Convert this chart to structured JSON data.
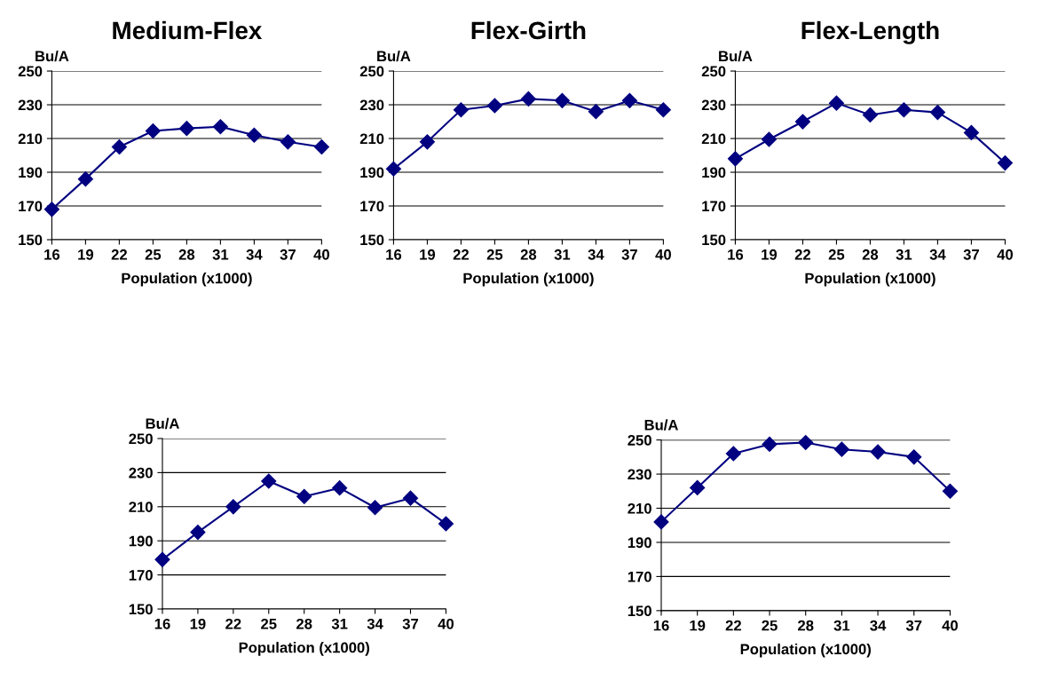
{
  "chart_data": [
    {
      "type": "line",
      "title": "Medium-Flex",
      "xlabel": "Population (x1000)",
      "ylabel": "Bu/A",
      "x": [
        16,
        19,
        22,
        25,
        28,
        31,
        34,
        37,
        40
      ],
      "series": [
        {
          "color": "#000080",
          "values": [
            168,
            186,
            205,
            214.5,
            216,
            217,
            212,
            208,
            205
          ]
        }
      ],
      "xlim": [
        16,
        40
      ],
      "xticks": [
        16,
        19,
        22,
        25,
        28,
        31,
        34,
        37,
        40
      ],
      "ylim": [
        150,
        250
      ],
      "yticks": [
        150,
        170,
        190,
        210,
        230,
        250
      ],
      "grid": "y",
      "marker": "diamond",
      "line_style": "solid"
    },
    {
      "type": "line",
      "title": "Flex-Girth",
      "xlabel": "Population (x1000)",
      "ylabel": "Bu/A",
      "x": [
        16,
        19,
        22,
        25,
        28,
        31,
        34,
        37,
        40
      ],
      "series": [
        {
          "color": "#000080",
          "values": [
            192,
            208,
            227,
            229.5,
            233.5,
            232.5,
            226,
            232.5,
            227
          ]
        }
      ],
      "xlim": [
        16,
        40
      ],
      "xticks": [
        16,
        19,
        22,
        25,
        28,
        31,
        34,
        37,
        40
      ],
      "ylim": [
        150,
        250
      ],
      "yticks": [
        150,
        170,
        190,
        210,
        230,
        250
      ],
      "grid": "y",
      "marker": "diamond",
      "line_style": "solid"
    },
    {
      "type": "line",
      "title": "Flex-Length",
      "xlabel": "Population (x1000)",
      "ylabel": "Bu/A",
      "x": [
        16,
        19,
        22,
        25,
        28,
        31,
        34,
        37,
        40
      ],
      "series": [
        {
          "color": "#000080",
          "values": [
            198,
            209.5,
            220,
            231,
            224,
            227,
            225.5,
            213.5,
            195.5
          ]
        }
      ],
      "xlim": [
        16,
        40
      ],
      "xticks": [
        16,
        19,
        22,
        25,
        28,
        31,
        34,
        37,
        40
      ],
      "ylim": [
        150,
        250
      ],
      "yticks": [
        150,
        170,
        190,
        210,
        230,
        250
      ],
      "grid": "y",
      "marker": "diamond",
      "line_style": "solid"
    },
    {
      "type": "line",
      "xlabel": "Population (x1000)",
      "ylabel": "Bu/A",
      "x": [
        16,
        19,
        22,
        25,
        28,
        31,
        34,
        37,
        40
      ],
      "series": [
        {
          "color": "#000080",
          "values": [
            179,
            195,
            210,
            225,
            216,
            221,
            209.5,
            215,
            200
          ]
        }
      ],
      "xlim": [
        16,
        40
      ],
      "xticks": [
        16,
        19,
        22,
        25,
        28,
        31,
        34,
        37,
        40
      ],
      "ylim": [
        150,
        250
      ],
      "yticks": [
        150,
        170,
        190,
        210,
        230,
        250
      ],
      "grid": "y",
      "marker": "diamond",
      "line_style": "solid"
    },
    {
      "type": "line",
      "xlabel": "Population (x1000)",
      "ylabel": "Bu/A",
      "x": [
        16,
        19,
        22,
        25,
        28,
        31,
        34,
        37,
        40
      ],
      "series": [
        {
          "color": "#000080",
          "values": [
            202,
            222,
            242,
            247.5,
            248.5,
            244.5,
            243,
            240,
            220
          ]
        }
      ],
      "xlim": [
        16,
        40
      ],
      "xticks": [
        16,
        19,
        22,
        25,
        28,
        31,
        34,
        37,
        40
      ],
      "ylim": [
        150,
        250
      ],
      "yticks": [
        150,
        170,
        190,
        210,
        230,
        250
      ],
      "grid": "y",
      "marker": "diamond",
      "line_style": "solid"
    }
  ]
}
